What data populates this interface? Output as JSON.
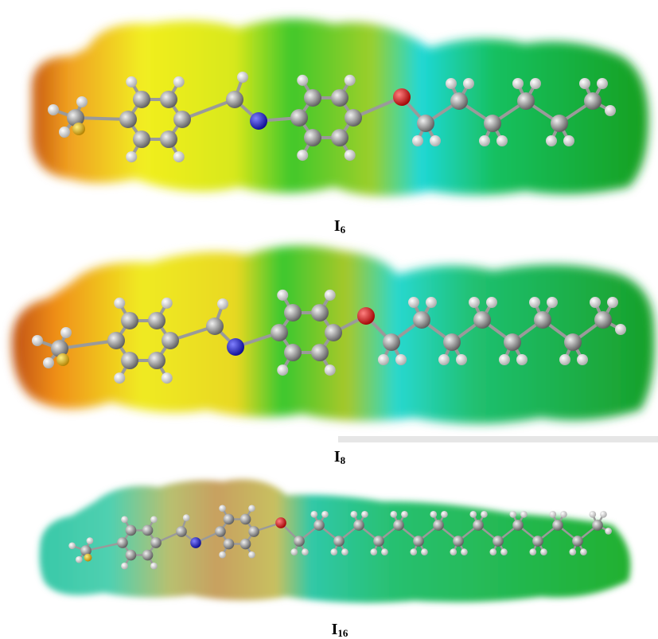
{
  "figures": [
    {
      "label": "I",
      "subscript": "6"
    },
    {
      "label": "I",
      "subscript": "8"
    },
    {
      "label": "I",
      "subscript": "16"
    }
  ]
}
